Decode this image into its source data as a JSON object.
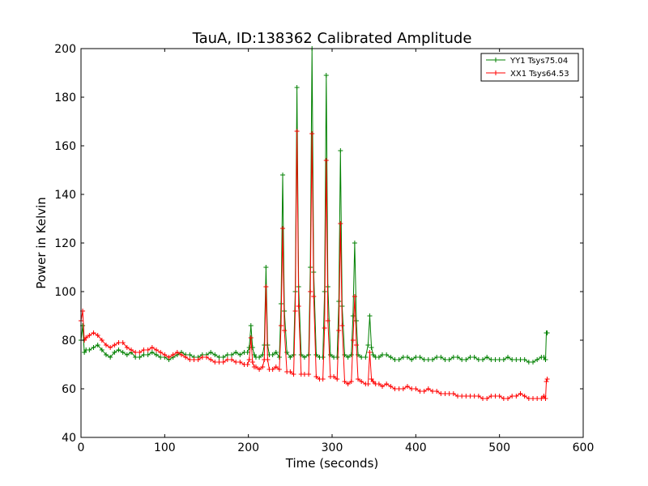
{
  "chart_data": {
    "type": "line",
    "title": "TauA, ID:138362 Calibrated Amplitude",
    "xlabel": "Time (seconds)",
    "ylabel": "Power in Kelvin",
    "xlim": [
      0,
      600
    ],
    "ylim": [
      40,
      200
    ],
    "xticks": [
      0,
      100,
      200,
      300,
      400,
      500,
      600
    ],
    "yticks": [
      40,
      60,
      80,
      100,
      120,
      140,
      160,
      180,
      200
    ],
    "grid": false,
    "legend_position": "top-right",
    "marker": "plus",
    "series": [
      {
        "name": "YY1 Tsys75.04",
        "color": "#008000",
        "x": [
          0,
          2,
          4,
          6,
          10,
          15,
          20,
          25,
          30,
          35,
          40,
          45,
          50,
          55,
          60,
          65,
          70,
          75,
          80,
          85,
          90,
          95,
          100,
          105,
          110,
          115,
          120,
          125,
          130,
          135,
          140,
          145,
          150,
          155,
          160,
          165,
          170,
          175,
          180,
          185,
          190,
          195,
          199,
          201,
          203,
          205,
          207,
          209,
          213,
          217,
          219,
          221,
          223,
          225,
          229,
          233,
          237,
          239,
          241,
          243,
          246,
          250,
          254,
          256,
          258,
          260,
          263,
          267,
          272,
          274,
          276,
          278,
          281,
          285,
          289,
          291,
          293,
          295,
          298,
          302,
          306,
          308,
          310,
          312,
          315,
          319,
          323,
          325,
          327,
          329,
          331,
          335,
          340,
          343,
          345,
          347,
          349,
          352,
          356,
          360,
          365,
          370,
          375,
          380,
          385,
          390,
          395,
          400,
          405,
          410,
          415,
          420,
          425,
          430,
          435,
          440,
          445,
          450,
          455,
          460,
          465,
          470,
          475,
          480,
          485,
          490,
          495,
          500,
          505,
          510,
          515,
          520,
          525,
          530,
          535,
          540,
          545,
          550,
          553,
          555,
          556,
          557
        ],
        "y": [
          80,
          86,
          75,
          76,
          76,
          77,
          78,
          76,
          74,
          73,
          75,
          76,
          75,
          74,
          75,
          73,
          73,
          74,
          74,
          75,
          74,
          73,
          73,
          72,
          73,
          74,
          75,
          74,
          74,
          73,
          73,
          74,
          74,
          75,
          74,
          73,
          73,
          74,
          74,
          75,
          74,
          75,
          75,
          77,
          86,
          77,
          74,
          73,
          73,
          74,
          78,
          110,
          78,
          74,
          74,
          75,
          73,
          95,
          148,
          92,
          75,
          73,
          74,
          100,
          184,
          102,
          74,
          73,
          74,
          110,
          200,
          108,
          74,
          73,
          73,
          100,
          189,
          102,
          74,
          73,
          73,
          96,
          158,
          94,
          74,
          73,
          74,
          90,
          120,
          88,
          74,
          73,
          73,
          78,
          90,
          77,
          74,
          73,
          73,
          74,
          74,
          73,
          72,
          72,
          73,
          73,
          72,
          73,
          73,
          72,
          72,
          72,
          73,
          73,
          72,
          72,
          73,
          73,
          72,
          72,
          73,
          73,
          72,
          72,
          73,
          72,
          72,
          72,
          72,
          73,
          72,
          72,
          72,
          72,
          71,
          71,
          72,
          73,
          73,
          72,
          83,
          83
        ]
      },
      {
        "name": "XX1 Tsys64.53",
        "color": "#ff0000",
        "x": [
          0,
          2,
          4,
          6,
          10,
          15,
          20,
          25,
          30,
          35,
          40,
          45,
          50,
          55,
          60,
          65,
          70,
          75,
          80,
          85,
          90,
          95,
          100,
          105,
          110,
          115,
          120,
          125,
          130,
          135,
          140,
          145,
          150,
          155,
          160,
          165,
          170,
          175,
          180,
          185,
          190,
          195,
          199,
          201,
          203,
          205,
          207,
          209,
          213,
          217,
          219,
          221,
          223,
          225,
          229,
          233,
          237,
          239,
          241,
          243,
          246,
          250,
          254,
          256,
          258,
          260,
          263,
          267,
          272,
          274,
          276,
          278,
          281,
          285,
          289,
          291,
          293,
          295,
          298,
          302,
          306,
          308,
          310,
          312,
          315,
          319,
          323,
          325,
          327,
          329,
          331,
          335,
          340,
          343,
          345,
          347,
          349,
          352,
          356,
          360,
          365,
          370,
          375,
          380,
          385,
          390,
          395,
          400,
          405,
          410,
          415,
          420,
          425,
          430,
          435,
          440,
          445,
          450,
          455,
          460,
          465,
          470,
          475,
          480,
          485,
          490,
          495,
          500,
          505,
          510,
          515,
          520,
          525,
          530,
          535,
          540,
          545,
          550,
          553,
          555,
          556,
          557
        ],
        "y": [
          88,
          92,
          80,
          81,
          82,
          83,
          82,
          80,
          78,
          77,
          78,
          79,
          79,
          77,
          76,
          75,
          75,
          76,
          76,
          77,
          76,
          75,
          74,
          73,
          74,
          75,
          74,
          73,
          72,
          72,
          72,
          73,
          73,
          72,
          71,
          71,
          71,
          72,
          72,
          71,
          71,
          70,
          70,
          72,
          81,
          71,
          69,
          69,
          68,
          69,
          72,
          102,
          72,
          68,
          68,
          69,
          68,
          86,
          126,
          84,
          67,
          67,
          66,
          92,
          166,
          94,
          66,
          66,
          66,
          100,
          165,
          98,
          65,
          64,
          64,
          85,
          154,
          88,
          65,
          65,
          64,
          84,
          128,
          86,
          63,
          62,
          63,
          80,
          98,
          78,
          64,
          63,
          62,
          62,
          75,
          64,
          63,
          62,
          62,
          61,
          62,
          61,
          60,
          60,
          60,
          61,
          60,
          60,
          59,
          59,
          60,
          59,
          59,
          58,
          58,
          58,
          58,
          57,
          57,
          57,
          57,
          57,
          57,
          56,
          56,
          57,
          57,
          57,
          56,
          56,
          57,
          57,
          58,
          57,
          56,
          56,
          56,
          56,
          57,
          56,
          63,
          64
        ]
      }
    ]
  }
}
